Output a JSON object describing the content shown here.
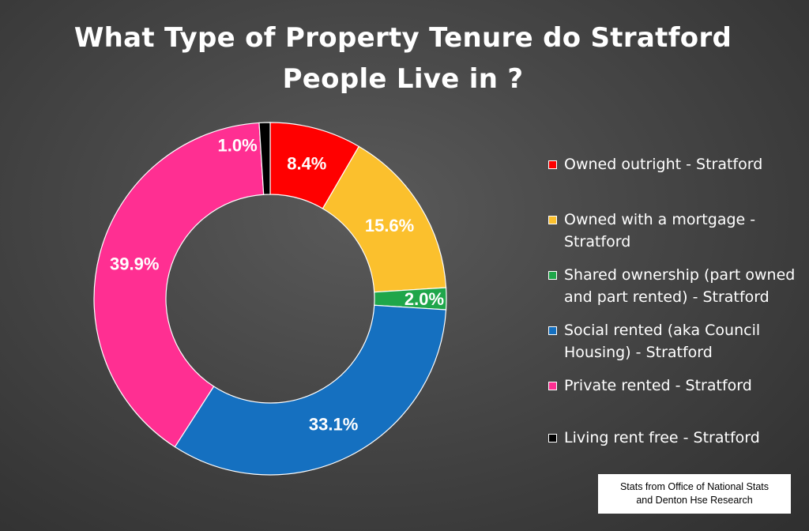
{
  "title_line1": "What Type of Property Tenure do Stratford",
  "title_line2": "People Live in ?",
  "source_line1": "Stats from Office of National Stats",
  "source_line2": "and Denton Hse Research",
  "chart_data": {
    "type": "pie",
    "variant": "doughnut",
    "start_angle_deg": 0,
    "direction": "clockwise",
    "legend_position": "right",
    "slices": [
      {
        "label": "Owned outright -  Stratford",
        "value": 8.4,
        "display": "8.4%",
        "color": "#ff0000"
      },
      {
        "label": "Owned with a mortgage - Stratford",
        "value": 15.6,
        "display": "15.6%",
        "color": "#fbc02d"
      },
      {
        "label": "Shared ownership (part owned and part rented) -  Stratford",
        "value": 2.0,
        "display": "2.0%",
        "color": "#1fa64a"
      },
      {
        "label": "Social rented (aka Council Housing) -   Stratford",
        "value": 33.1,
        "display": "33.1%",
        "color": "#1570c0"
      },
      {
        "label": "Private rented -  Stratford",
        "value": 39.9,
        "display": "39.9%",
        "color": "#ff2f92"
      },
      {
        "label": "Living rent free -  Stratford",
        "value": 1.0,
        "display": "1.0%",
        "color": "#000000"
      }
    ]
  }
}
